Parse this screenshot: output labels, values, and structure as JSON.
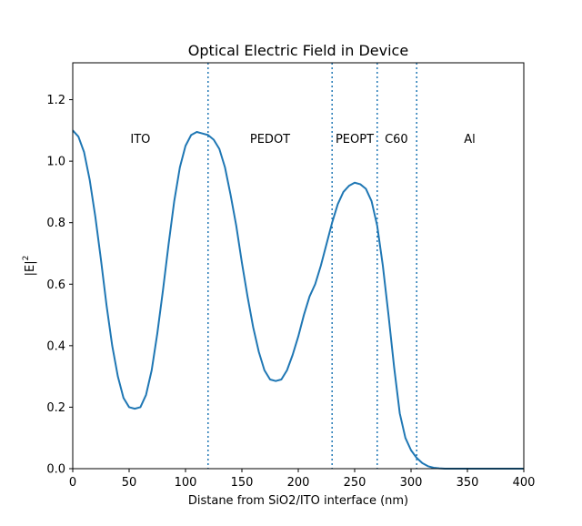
{
  "chart_data": {
    "type": "line",
    "title": "Optical Electric Field in Device",
    "xlabel": "Distane from SiO2/ITO interface (nm)",
    "ylabel_base": "|E|",
    "ylabel_sup": "2",
    "xlim": [
      0,
      400
    ],
    "ylim": [
      0,
      1.32
    ],
    "xticks": [
      0,
      50,
      100,
      150,
      200,
      250,
      300,
      350,
      400
    ],
    "yticks": [
      0.0,
      0.2,
      0.4,
      0.6,
      0.8,
      1.0,
      1.2
    ],
    "grid": false,
    "line_color": "#1f77b4",
    "boundaries": [
      120,
      230,
      270,
      305
    ],
    "regions": [
      {
        "label": "ITO",
        "x": 60
      },
      {
        "label": "PEDOT",
        "x": 175
      },
      {
        "label": "PEOPT",
        "x": 250
      },
      {
        "label": "C60",
        "x": 287
      },
      {
        "label": "Al",
        "x": 352
      }
    ],
    "region_label_y": 1.06,
    "series": [
      {
        "x": [
          0,
          5,
          10,
          15,
          20,
          25,
          30,
          35,
          40,
          45,
          50,
          55,
          60,
          65,
          70,
          75,
          80,
          85,
          90,
          95,
          100,
          105,
          110,
          115,
          120,
          125,
          130,
          135,
          140,
          145,
          150,
          155,
          160,
          165,
          170,
          175,
          180,
          185,
          190,
          195,
          200,
          205,
          210,
          215,
          220,
          225,
          230,
          235,
          240,
          245,
          250,
          255,
          260,
          265,
          270,
          275,
          280,
          285,
          290,
          295,
          300,
          305,
          310,
          315,
          320,
          325,
          330,
          340,
          350,
          360,
          370,
          380,
          390,
          400
        ],
        "y": [
          1.1,
          1.08,
          1.03,
          0.94,
          0.82,
          0.68,
          0.53,
          0.4,
          0.3,
          0.23,
          0.2,
          0.195,
          0.2,
          0.24,
          0.32,
          0.44,
          0.58,
          0.73,
          0.87,
          0.98,
          1.05,
          1.085,
          1.095,
          1.09,
          1.085,
          1.07,
          1.04,
          0.98,
          0.89,
          0.79,
          0.67,
          0.56,
          0.46,
          0.38,
          0.32,
          0.29,
          0.285,
          0.29,
          0.32,
          0.37,
          0.43,
          0.5,
          0.56,
          0.6,
          0.66,
          0.73,
          0.8,
          0.86,
          0.9,
          0.92,
          0.93,
          0.925,
          0.91,
          0.87,
          0.79,
          0.66,
          0.5,
          0.33,
          0.18,
          0.1,
          0.06,
          0.035,
          0.018,
          0.008,
          0.003,
          0.001,
          0.0,
          0.0,
          0.0,
          0.0,
          0.0,
          0.0,
          0.0,
          0.0
        ]
      }
    ]
  }
}
